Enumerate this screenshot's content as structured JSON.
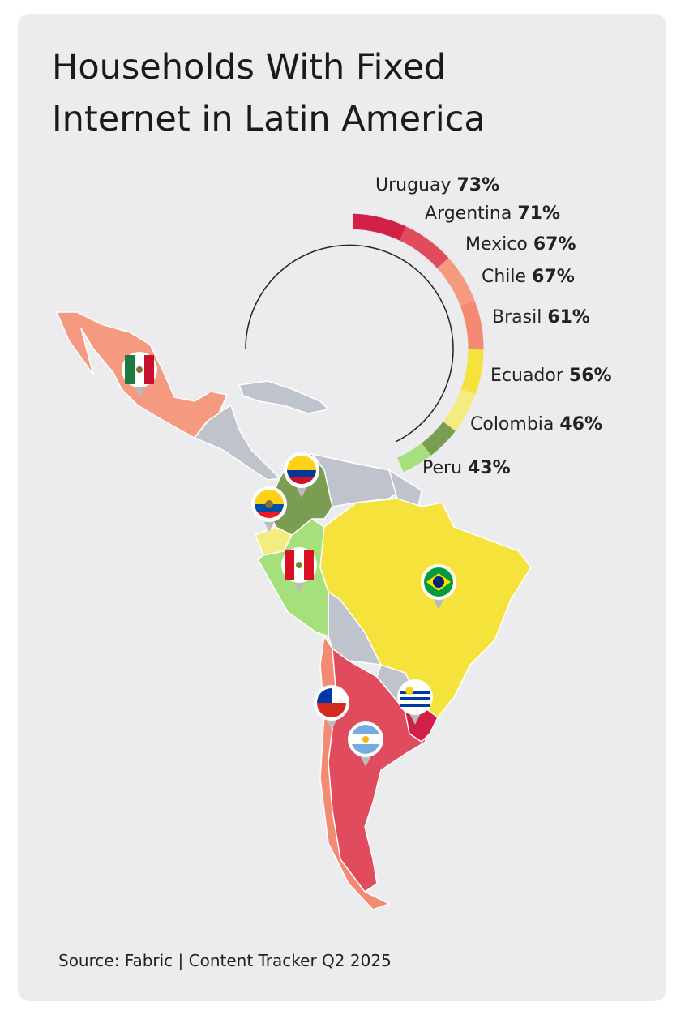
{
  "title_lines": [
    "Households With Fixed",
    "Internet in Latin America"
  ],
  "countries": [
    {
      "name": "Uruguay",
      "value": 73,
      "value_label": "73%",
      "color": "#d21f45"
    },
    {
      "name": "Argentina",
      "value": 71,
      "value_label": "71%",
      "color": "#e04b5e"
    },
    {
      "name": "Mexico",
      "value": 67,
      "value_label": "67%",
      "color": "#f59a80"
    },
    {
      "name": "Chile",
      "value": 67,
      "value_label": "67%",
      "color": "#f58a72"
    },
    {
      "name": "Brasil",
      "value": 61,
      "value_label": "61%",
      "color": "#f5e23b"
    },
    {
      "name": "Ecuador",
      "value": 56,
      "value_label": "56%",
      "color": "#f3ec80"
    },
    {
      "name": "Colombia",
      "value": 46,
      "value_label": "46%",
      "color": "#7b9d52"
    },
    {
      "name": "Peru",
      "value": 43,
      "value_label": "43%",
      "color": "#a5e07c"
    }
  ],
  "source": "Source: Fabric | Content Tracker Q2 2025"
}
